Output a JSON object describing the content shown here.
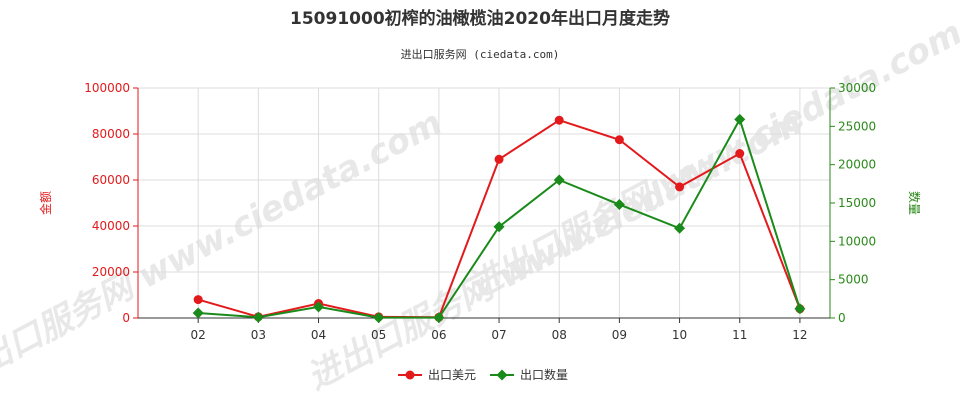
{
  "chart_data": {
    "type": "line",
    "title": "15091000初榨的油橄榄油2020年出口月度走势",
    "subtitle": "进出口服务网 (ciedata.com)",
    "watermark": "进出口服务网 www.ciedata.com",
    "categories": [
      "02",
      "03",
      "04",
      "05",
      "06",
      "07",
      "08",
      "09",
      "10",
      "11",
      "12"
    ],
    "y_left": {
      "label": "金额",
      "ylim": [
        0,
        100000
      ],
      "ticks": [
        "0",
        "20000",
        "40000",
        "60000",
        "80000",
        "100000"
      ],
      "color": "#e31a1c"
    },
    "y_right": {
      "label": "数量",
      "ylim": [
        0,
        30000
      ],
      "ticks": [
        "0",
        "5000",
        "10000",
        "15000",
        "20000",
        "25000",
        "30000"
      ],
      "color": "#2a8a1a"
    },
    "series": [
      {
        "name": "出口美元",
        "axis": "left",
        "color": "#e31a1c",
        "marker": "circle",
        "values": [
          8000,
          500,
          6300,
          500,
          300,
          69000,
          86000,
          77500,
          57000,
          71500,
          4000
        ]
      },
      {
        "name": "出口数量",
        "axis": "right",
        "color": "#1a8a1a",
        "marker": "diamond",
        "values": [
          650,
          100,
          1450,
          50,
          50,
          11900,
          18000,
          14800,
          11700,
          25900,
          1200
        ]
      }
    ],
    "grid": true,
    "legend": "bottom-center"
  }
}
